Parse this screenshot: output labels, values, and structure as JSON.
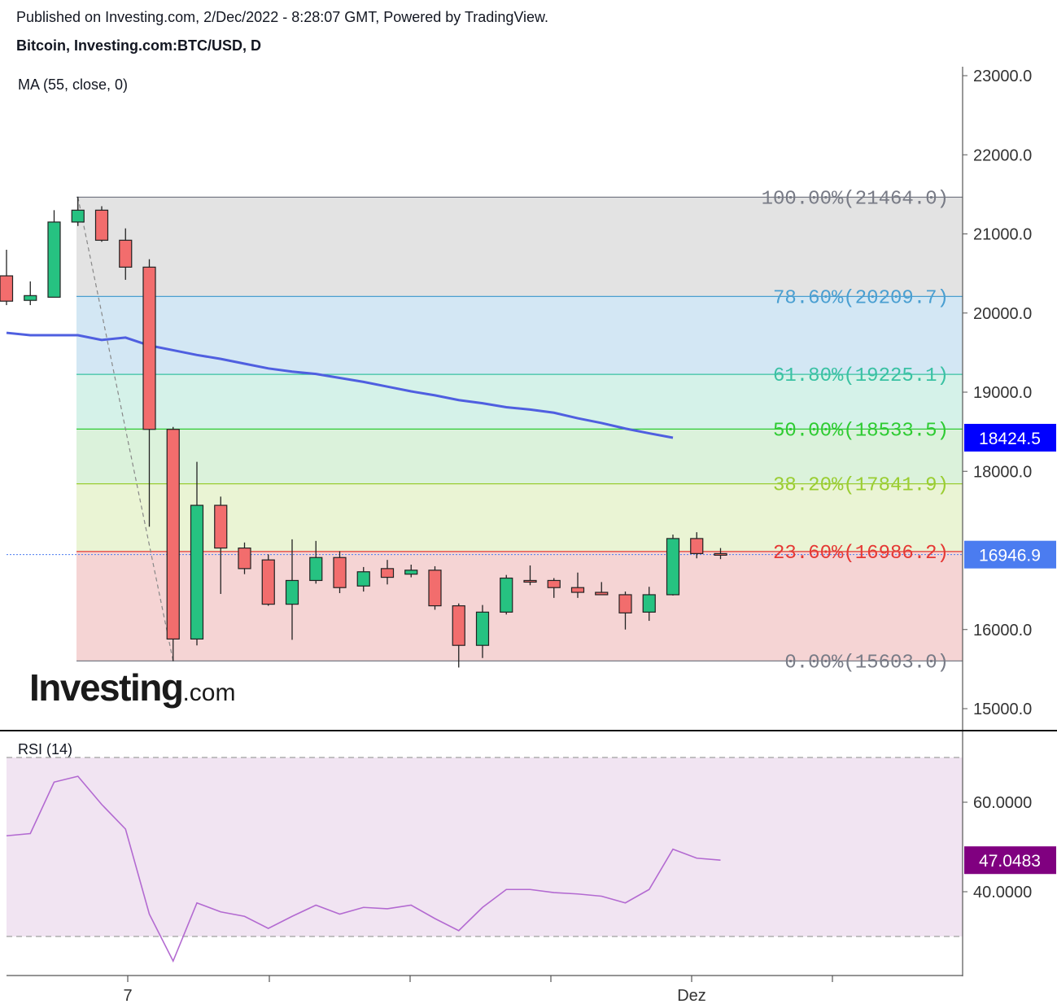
{
  "header": {
    "published": "Published on Investing.com, 2/Dec/2022 - 8:28:07 GMT, Powered by TradingView.",
    "symbol": "Bitcoin, Investing.com:BTC/USD, D"
  },
  "logo": {
    "brand": "Investing",
    "suffix": ".com"
  },
  "chart_data": [
    {
      "type": "candlestick",
      "indicator_label": "MA (55, close, 0)",
      "ylim": [
        14500,
        23100
      ],
      "y_ticks": [
        "23000.0",
        "22000.0",
        "21000.0",
        "20000.0",
        "19000.0",
        "18000.0",
        "16000.0",
        "15000.0"
      ],
      "x_ticks": [
        "7",
        "Dez"
      ],
      "candles": [
        {
          "o": 20470,
          "h": 20800,
          "l": 20100,
          "c": 20150
        },
        {
          "o": 20160,
          "h": 20400,
          "l": 20100,
          "c": 20220
        },
        {
          "o": 20200,
          "h": 21300,
          "l": 20200,
          "c": 21150
        },
        {
          "o": 21150,
          "h": 21470,
          "l": 21100,
          "c": 21300
        },
        {
          "o": 21300,
          "h": 21350,
          "l": 20900,
          "c": 20920
        },
        {
          "o": 20920,
          "h": 21070,
          "l": 20420,
          "c": 20580
        },
        {
          "o": 20580,
          "h": 20680,
          "l": 17300,
          "c": 18530
        },
        {
          "o": 18530,
          "h": 18560,
          "l": 15600,
          "c": 15880
        },
        {
          "o": 15880,
          "h": 18120,
          "l": 15800,
          "c": 17570
        },
        {
          "o": 17570,
          "h": 17680,
          "l": 16450,
          "c": 17030
        },
        {
          "o": 17030,
          "h": 17100,
          "l": 16700,
          "c": 16770
        },
        {
          "o": 16880,
          "h": 16950,
          "l": 16300,
          "c": 16320
        },
        {
          "o": 16320,
          "h": 17140,
          "l": 15870,
          "c": 16620
        },
        {
          "o": 16620,
          "h": 17120,
          "l": 16580,
          "c": 16910
        },
        {
          "o": 16910,
          "h": 16990,
          "l": 16460,
          "c": 16530
        },
        {
          "o": 16550,
          "h": 16790,
          "l": 16480,
          "c": 16730
        },
        {
          "o": 16770,
          "h": 16880,
          "l": 16570,
          "c": 16660
        },
        {
          "o": 16700,
          "h": 16820,
          "l": 16660,
          "c": 16750
        },
        {
          "o": 16750,
          "h": 16800,
          "l": 16250,
          "c": 16300
        },
        {
          "o": 16300,
          "h": 16330,
          "l": 15520,
          "c": 15800
        },
        {
          "o": 15800,
          "h": 16310,
          "l": 15640,
          "c": 16220
        },
        {
          "o": 16220,
          "h": 16690,
          "l": 16190,
          "c": 16650
        },
        {
          "o": 16620,
          "h": 16810,
          "l": 16560,
          "c": 16600
        },
        {
          "o": 16620,
          "h": 16650,
          "l": 16400,
          "c": 16530
        },
        {
          "o": 16530,
          "h": 16720,
          "l": 16400,
          "c": 16470
        },
        {
          "o": 16470,
          "h": 16600,
          "l": 16450,
          "c": 16440
        },
        {
          "o": 16440,
          "h": 16480,
          "l": 16000,
          "c": 16210
        },
        {
          "o": 16220,
          "h": 16540,
          "l": 16110,
          "c": 16440
        },
        {
          "o": 16440,
          "h": 17200,
          "l": 16430,
          "c": 17150
        },
        {
          "o": 17150,
          "h": 17230,
          "l": 16900,
          "c": 16960
        },
        {
          "o": 16960,
          "h": 17030,
          "l": 16890,
          "c": 16947
        }
      ],
      "ma_values": [
        19750,
        19720,
        19720,
        19720,
        19660,
        19690,
        19590,
        19530,
        19470,
        19420,
        19360,
        19300,
        19260,
        19230,
        19180,
        19130,
        19070,
        19010,
        18960,
        18900,
        18860,
        18810,
        18780,
        18740,
        18670,
        18610,
        18540,
        18480,
        18424.5
      ],
      "fib_levels": [
        {
          "label": "100.00%(21464.0)",
          "value": 21464.0,
          "color": "#787b86",
          "fill": "#e3e3e3"
        },
        {
          "label": "78.60%(20209.7)",
          "value": 20209.7,
          "color": "#4a9fd1",
          "fill": "#d3e7f4"
        },
        {
          "label": "61.80%(19225.1)",
          "value": 19225.1,
          "color": "#3ac1a3",
          "fill": "#d5f2e9"
        },
        {
          "label": "50.00%(18533.5)",
          "value": 18533.5,
          "color": "#2ecb32",
          "fill": "#dbf2db"
        },
        {
          "label": "38.20%(17841.9)",
          "value": 17841.9,
          "color": "#9acd32",
          "fill": "#eaf4d4"
        },
        {
          "label": "23.60%(16986.2)",
          "value": 16986.2,
          "color": "#e53935",
          "fill": "#f5d4d4"
        },
        {
          "label": "0.00%(15603.0)",
          "value": 15603.0,
          "color": "#787b86",
          "fill": "none"
        }
      ],
      "price_tags": [
        {
          "value": 18424.5,
          "text": "18424.5",
          "color": "#0000ff"
        },
        {
          "value": 16946.9,
          "text": "16946.9",
          "color": "#4b7cf0"
        }
      ],
      "colors": {
        "up": "#26c281",
        "down": "#f26d6d",
        "ma": "#4f5fe0"
      }
    },
    {
      "type": "line",
      "indicator_label": "RSI (14)",
      "ylim": [
        20,
        78
      ],
      "y_ticks": [
        "60.0000",
        "40.0000"
      ],
      "bands": [
        70,
        30
      ],
      "values": [
        52.5,
        53.0,
        64.5,
        65.8,
        59.5,
        54.0,
        35.0,
        24.5,
        37.5,
        35.5,
        34.5,
        31.8,
        34.5,
        37.0,
        35.0,
        36.5,
        36.2,
        37.0,
        34.0,
        31.3,
        36.5,
        40.5,
        40.5,
        39.8,
        39.5,
        39.0,
        37.5,
        40.5,
        49.5,
        47.5,
        47.0483
      ],
      "last_tag": {
        "text": "47.0483",
        "color": "#800080"
      },
      "line_color": "#b36ad1"
    }
  ]
}
